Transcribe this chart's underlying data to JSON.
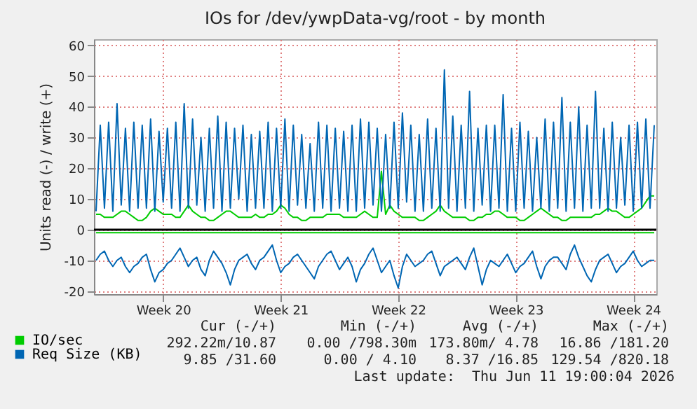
{
  "chart_data": {
    "type": "line",
    "title": "IOs for /dev/ywpData-vg/root - by month",
    "ylabel": "Units read (-) / write (+)",
    "categories": [
      null,
      null,
      null,
      null,
      null,
      null,
      null,
      null,
      null,
      null,
      null,
      null,
      null,
      null,
      null,
      null,
      "Week 20",
      null,
      null,
      null,
      null,
      null,
      null,
      null,
      null,
      null,
      null,
      null,
      null,
      null,
      null,
      null,
      null,
      null,
      null,
      null,
      null,
      null,
      null,
      null,
      null,
      null,
      null,
      null,
      "Week 21",
      null,
      null,
      null,
      null,
      null,
      null,
      null,
      null,
      null,
      null,
      null,
      null,
      null,
      null,
      null,
      null,
      null,
      null,
      null,
      null,
      null,
      null,
      null,
      null,
      null,
      null,
      null,
      "Week 22",
      null,
      null,
      null,
      null,
      null,
      null,
      null,
      null,
      null,
      null,
      null,
      null,
      null,
      null,
      null,
      null,
      null,
      null,
      null,
      null,
      null,
      null,
      null,
      null,
      null,
      null,
      null,
      "Week 23",
      null,
      null,
      null,
      null,
      null,
      null,
      null,
      null,
      null,
      null,
      null,
      null,
      null,
      null,
      null,
      null,
      null,
      null,
      null,
      null,
      null,
      null,
      null,
      null,
      null,
      null,
      null,
      "Week 24",
      null,
      null,
      null,
      null,
      null
    ],
    "ylim": [
      -21,
      62
    ],
    "yticks": [
      -20,
      -10,
      0,
      10,
      20,
      30,
      40,
      50,
      60
    ],
    "grid": true,
    "legend": "bottom left",
    "ref_lines": [
      {
        "axis": "y",
        "value": 0,
        "color": "#000000"
      }
    ],
    "annotations": [
      "Cur (-/+)",
      "Min (-/+)",
      "Avg (-/+)",
      "Max (-/+)",
      "292.22m/10.87",
      "0.00 /798.30m",
      "173.80m/ 4.78",
      "16.86 /181.20",
      "9.85 /31.60",
      "0.00 / 4.10",
      "8.37 /16.85",
      "129.54 /820.18",
      "Last update:  Thu Jun 11 19:00:04 2026"
    ],
    "series": [
      {
        "name": "IO/sec",
        "color": "#00cc00",
        "values": [
          5,
          5,
          4,
          4,
          4,
          5,
          6,
          6,
          5,
          4,
          3,
          3,
          4,
          6,
          7,
          6,
          5,
          5,
          5,
          4,
          4,
          6,
          8,
          6,
          5,
          4,
          4,
          3,
          3,
          4,
          5,
          6,
          6,
          5,
          4,
          4,
          4,
          4,
          5,
          4,
          4,
          5,
          5,
          6,
          8,
          7,
          5,
          4,
          4,
          3,
          3,
          4,
          4,
          4,
          4,
          5,
          5,
          5,
          5,
          4,
          4,
          4,
          4,
          5,
          6,
          5,
          4,
          4,
          19,
          5,
          8,
          6,
          5,
          4,
          4,
          4,
          4,
          3,
          3,
          4,
          5,
          6,
          8,
          6,
          5,
          4,
          4,
          4,
          4,
          3,
          3,
          4,
          4,
          5,
          5,
          6,
          6,
          5,
          4,
          4,
          4,
          3,
          3,
          4,
          5,
          6,
          7,
          6,
          5,
          4,
          4,
          3,
          3,
          4,
          4,
          4,
          4,
          4,
          4,
          5,
          5,
          6,
          7,
          6,
          6,
          5,
          4,
          4,
          5,
          6,
          7,
          9,
          11,
          11
        ]
      },
      {
        "name": "Req Size (KB)",
        "color": "#0066b3",
        "values": [
          6,
          34,
          7,
          35,
          6,
          41,
          8,
          33,
          6,
          35,
          7,
          34,
          7,
          36,
          6,
          32,
          9,
          33,
          7,
          35,
          6,
          41,
          7,
          36,
          8,
          30,
          6,
          33,
          7,
          37,
          6,
          35,
          7,
          33,
          10,
          34,
          6,
          31,
          7,
          32,
          7,
          35,
          6,
          33,
          7,
          36,
          6,
          34,
          8,
          31,
          7,
          28,
          6,
          35,
          7,
          34,
          6,
          33,
          7,
          32,
          6,
          34,
          6,
          36,
          7,
          35,
          8,
          33,
          6,
          31,
          7,
          35,
          7,
          38,
          9,
          34,
          6,
          31,
          6,
          36,
          7,
          33,
          6,
          52,
          7,
          37,
          6,
          34,
          7,
          45,
          6,
          33,
          8,
          34,
          6,
          34,
          7,
          44,
          6,
          33,
          6,
          35,
          7,
          32,
          6,
          30,
          7,
          36,
          6,
          35,
          7,
          43,
          6,
          35,
          7,
          40,
          6,
          34,
          7,
          45,
          7,
          33,
          6,
          35,
          7,
          30,
          8,
          34,
          6,
          35,
          7,
          36,
          7,
          34
        ]
      },
      {
        "color": "#0066b3",
        "values": [
          -10,
          -8,
          -7,
          -10,
          -12,
          -10,
          -9,
          -12,
          -14,
          -12,
          -11,
          -9,
          -8,
          -13,
          -17,
          -14,
          -13,
          -11,
          -10,
          -8,
          -6,
          -9,
          -12,
          -10,
          -9,
          -13,
          -15,
          -10,
          -7,
          -9,
          -11,
          -14,
          -18,
          -13,
          -10,
          -9,
          -8,
          -11,
          -13,
          -10,
          -9,
          -7,
          -5,
          -10,
          -14,
          -12,
          -11,
          -9,
          -8,
          -10,
          -12,
          -14,
          -16,
          -12,
          -10,
          -8,
          -7,
          -10,
          -13,
          -11,
          -9,
          -12,
          -17,
          -13,
          -11,
          -8,
          -6,
          -10,
          -14,
          -12,
          -10,
          -15,
          -19,
          -12,
          -8,
          -10,
          -12,
          -11,
          -10,
          -8,
          -7,
          -11,
          -15,
          -12,
          -11,
          -10,
          -9,
          -11,
          -13,
          -9,
          -6,
          -12,
          -18,
          -13,
          -10,
          -11,
          -12,
          -10,
          -8,
          -11,
          -14,
          -12,
          -11,
          -9,
          -7,
          -12,
          -16,
          -12,
          -10,
          -9,
          -9,
          -11,
          -13,
          -8,
          -5,
          -9,
          -12,
          -15,
          -17,
          -13,
          -10,
          -9,
          -8,
          -11,
          -14,
          -12,
          -11,
          -9,
          -7,
          -10,
          -12,
          -11,
          -10,
          -10
        ]
      },
      {
        "color": "#00cc00",
        "values": [
          -1,
          -1,
          -1,
          -1,
          -1,
          -1,
          -1,
          -1,
          -1,
          -1,
          -1,
          -1,
          -1,
          -1,
          -1,
          -1,
          -1,
          -1,
          -1,
          -1,
          -1,
          -1,
          -1,
          -1,
          -1,
          -1,
          -1,
          -1,
          -1,
          -1,
          -1,
          -1,
          -1,
          -1,
          -1,
          -1,
          -1,
          -1,
          -1,
          -1,
          -1,
          -1,
          -1,
          -1,
          -1,
          -1,
          -1,
          -1,
          -1,
          -1,
          -1,
          -1,
          -1,
          -1,
          -1,
          -1,
          -1,
          -1,
          -1,
          -1,
          -1,
          -1,
          -1,
          -1,
          -1,
          -1,
          -1,
          -1,
          -1,
          -1,
          -1,
          -1,
          -1,
          -1,
          -1,
          -1,
          -1,
          -1,
          -1,
          -1,
          -1,
          -1,
          -1,
          -1,
          -1,
          -1,
          -1,
          -1,
          -1,
          -1,
          -1,
          -1,
          -1,
          -1,
          -1,
          -1,
          -1,
          -1,
          -1,
          -1,
          -1,
          -1,
          -1,
          -1,
          -1,
          -1,
          -1,
          -1,
          -1,
          -1,
          -1,
          -1,
          -1,
          -1,
          -1,
          -1,
          -1,
          -1,
          -1,
          -1,
          -1,
          -1,
          -1,
          -1,
          -1,
          -1,
          -1,
          -1,
          -1,
          -1,
          -1,
          -1,
          -1,
          -1
        ]
      }
    ]
  }
}
